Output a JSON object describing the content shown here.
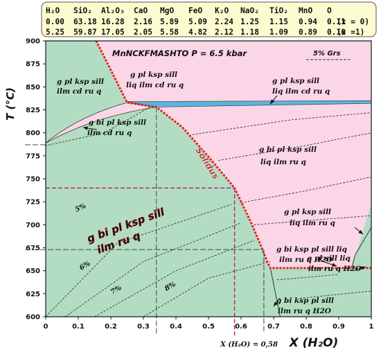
{
  "composition_table": {
    "header": [
      "H₂O",
      "SiO₂",
      "Al₂O₃",
      "CaO",
      "MgO",
      "FeO",
      "K₂O",
      "NaO₂",
      "TiO₂",
      "MnO",
      "O"
    ],
    "rows": [
      {
        "values": [
          "0.00",
          "63.18",
          "16.28",
          "2.16",
          "5.89",
          "5.09",
          "2.24",
          "1.25",
          "1.15",
          "0.94",
          "0.11"
        ],
        "label": "(x = 0)"
      },
      {
        "values": [
          "5.25",
          "59.87",
          "17.05",
          "2.05",
          "5.58",
          "4.82",
          "2.12",
          "1.18",
          "1.09",
          "0.89",
          "0.10"
        ],
        "label": "(x =1)"
      }
    ]
  },
  "title": "MnNCKFMASHTO P = 6.5 kbar",
  "legend": "5% Grs",
  "axes": {
    "x_label": "X (H₂O)",
    "y_label": "T (°C)",
    "x_ticks": [
      "0",
      "0.1",
      "0.2",
      "0.3",
      "0.4",
      "0.5",
      "0.6",
      "0.7",
      "0.8",
      "0.9",
      "1"
    ],
    "y_ticks": [
      "900",
      "875",
      "850",
      "825",
      "800",
      "775",
      "750",
      "725",
      "700",
      "675",
      "650",
      "625",
      "600"
    ],
    "x_range": [
      0,
      1
    ],
    "y_range": [
      600,
      900
    ]
  },
  "annotation_xh2o": "X (H₂O) = 0,58",
  "solidus_label": "Solidus",
  "highlight_field": [
    "g bi pl ksp sill",
    "ilm ru q"
  ],
  "fields": [
    [
      "g pl ksp sill",
      "ilm cd ru q"
    ],
    [
      "g pl ksp sill",
      "liq ilm cd ru q"
    ],
    [
      "g pl ksp sill",
      "liq ilm cd ru q"
    ],
    [
      "g bi pl ksp sill",
      "ilm cd ru q"
    ],
    [
      "g bi pl ksp sill",
      "liq ilm ru q"
    ],
    [
      "g pl ksp sill",
      "liq ilm ru q"
    ],
    [
      "g bi ksp pl sill liq",
      "ilm ru q H2O"
    ],
    [
      "g pl sill liq",
      "ilm ru q H2O"
    ],
    [
      "g bi ksp pl sill",
      "ilm ru q H2O"
    ]
  ],
  "isopleths": [
    "5%",
    "6%",
    "7%",
    "8%"
  ],
  "colors": {
    "liquid_field": "#fbd6e6",
    "subsolidus_field": "#b2ddc3",
    "solidus": "#e02020",
    "guide_lines": "#c0266b",
    "blue_field": "#5ab4de",
    "table_bg": "#fdfbd0"
  },
  "chart_data": {
    "type": "phase-diagram",
    "x": "X (H₂O)",
    "y": "T (°C)",
    "solidus": [
      [
        0.25,
        833
      ],
      [
        0.34,
        828
      ],
      [
        0.42,
        806
      ],
      [
        0.5,
        774
      ],
      [
        0.58,
        740
      ],
      [
        0.63,
        703
      ],
      [
        0.66,
        678
      ],
      [
        0.68,
        660
      ],
      [
        0.69,
        653
      ],
      [
        0.8,
        653
      ],
      [
        1.0,
        653
      ]
    ],
    "guide_points": [
      {
        "x": 0.58,
        "T": 740
      }
    ],
    "grid": false
  }
}
